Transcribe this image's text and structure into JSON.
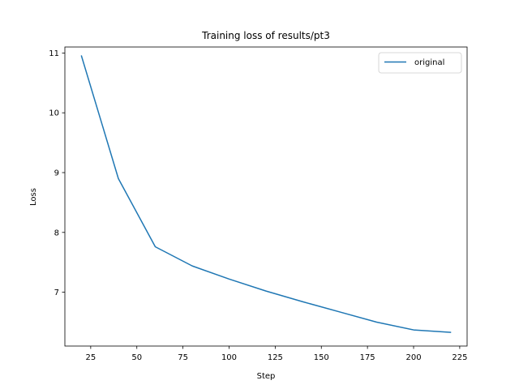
{
  "chart_data": {
    "type": "line",
    "title": "Training loss of results/pt3",
    "xlabel": "Step",
    "ylabel": "Loss",
    "xlim": [
      11,
      229
    ],
    "ylim": [
      6.1,
      11.1
    ],
    "xticks": [
      25,
      50,
      75,
      100,
      125,
      150,
      175,
      200,
      225
    ],
    "yticks": [
      7,
      8,
      9,
      10,
      11
    ],
    "grid": false,
    "legend_position": "top-right",
    "series": [
      {
        "name": "original",
        "color": "#1f77b4",
        "x": [
          20,
          40,
          60,
          80,
          100,
          120,
          140,
          160,
          180,
          200,
          220
        ],
        "y": [
          10.95,
          8.9,
          7.76,
          7.44,
          7.22,
          7.02,
          6.84,
          6.67,
          6.5,
          6.37,
          6.33
        ]
      }
    ]
  }
}
